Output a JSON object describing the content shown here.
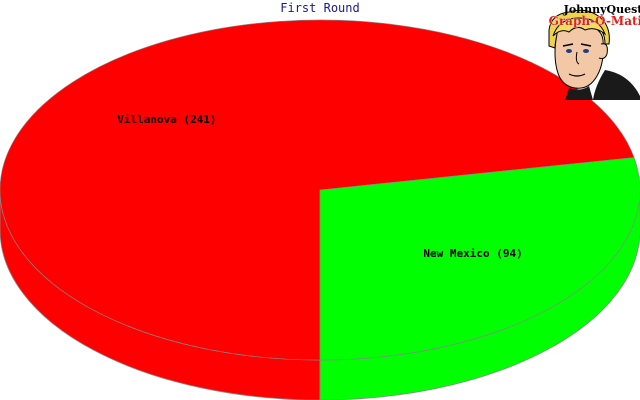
{
  "chart_data": {
    "type": "pie",
    "title": "First Round",
    "style": "3d",
    "slices": [
      {
        "label": "Villanova (241)",
        "name": "Villanova",
        "value": 241,
        "color": "#ff0000"
      },
      {
        "label": "New Mexico (94)",
        "name": "New Mexico",
        "value": 94,
        "color": "#00ff00"
      }
    ]
  },
  "logo": {
    "line1": "JohnnyQuest",
    "line2": "Graph-O-Matic",
    "icon": "cartoon-boy-face-icon"
  },
  "colors": {
    "title": "#1a1a8c",
    "edge": "#888888",
    "background": "#ffffff"
  }
}
